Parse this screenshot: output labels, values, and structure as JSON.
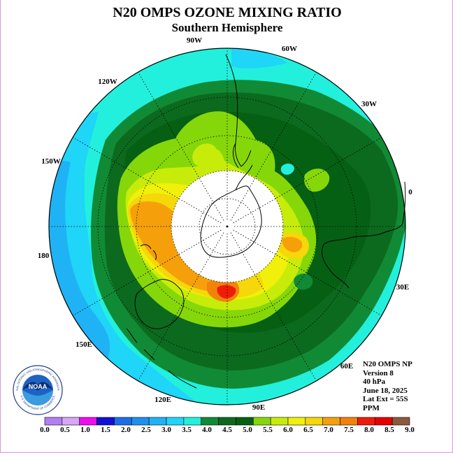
{
  "title": "N20 OMPS OZONE MIXING RATIO",
  "subtitle": "Southern Hemisphere",
  "longitude_labels": [
    "90W",
    "60W",
    "120W",
    "30W",
    "150W",
    "0",
    "180",
    "30E",
    "150E",
    "60E",
    "120E",
    "90E"
  ],
  "info": {
    "instrument": "N20 OMPS NP",
    "version": "Version 8",
    "level": "40 hPa",
    "date": "June 18, 2025",
    "lat_ext": "Lat Ext = 55S",
    "units": "PPM"
  },
  "colorbar": {
    "ticks": [
      "0.0",
      "0.5",
      "1.0",
      "1.5",
      "2.0",
      "2.5",
      "3.0",
      "3.5",
      "4.0",
      "4.5",
      "5.0",
      "5.5",
      "6.0",
      "6.5",
      "7.0",
      "7.5",
      "8.0",
      "8.5",
      "9.0"
    ],
    "colors": [
      "#b27ff0",
      "#d9a6f5",
      "#f00cf0",
      "#1010d6",
      "#1c6ee8",
      "#1e90ee",
      "#1fb3f5",
      "#1fd5f8",
      "#22f0dc",
      "#118a35",
      "#0c6a1f",
      "#066013",
      "#86d70a",
      "#c8ec0a",
      "#f0f00a",
      "#f5d70a",
      "#f5a00a",
      "#f2820a",
      "#f01c0a",
      "#e60000",
      "#8b5a3c"
    ]
  },
  "logo": {
    "text": "NOAA",
    "ring_top": "NATIONAL OCEANIC AND ATMOSPHERIC ADMINISTRATION",
    "ring_bottom": "U.S. DEPARTMENT OF COMMERCE"
  }
}
